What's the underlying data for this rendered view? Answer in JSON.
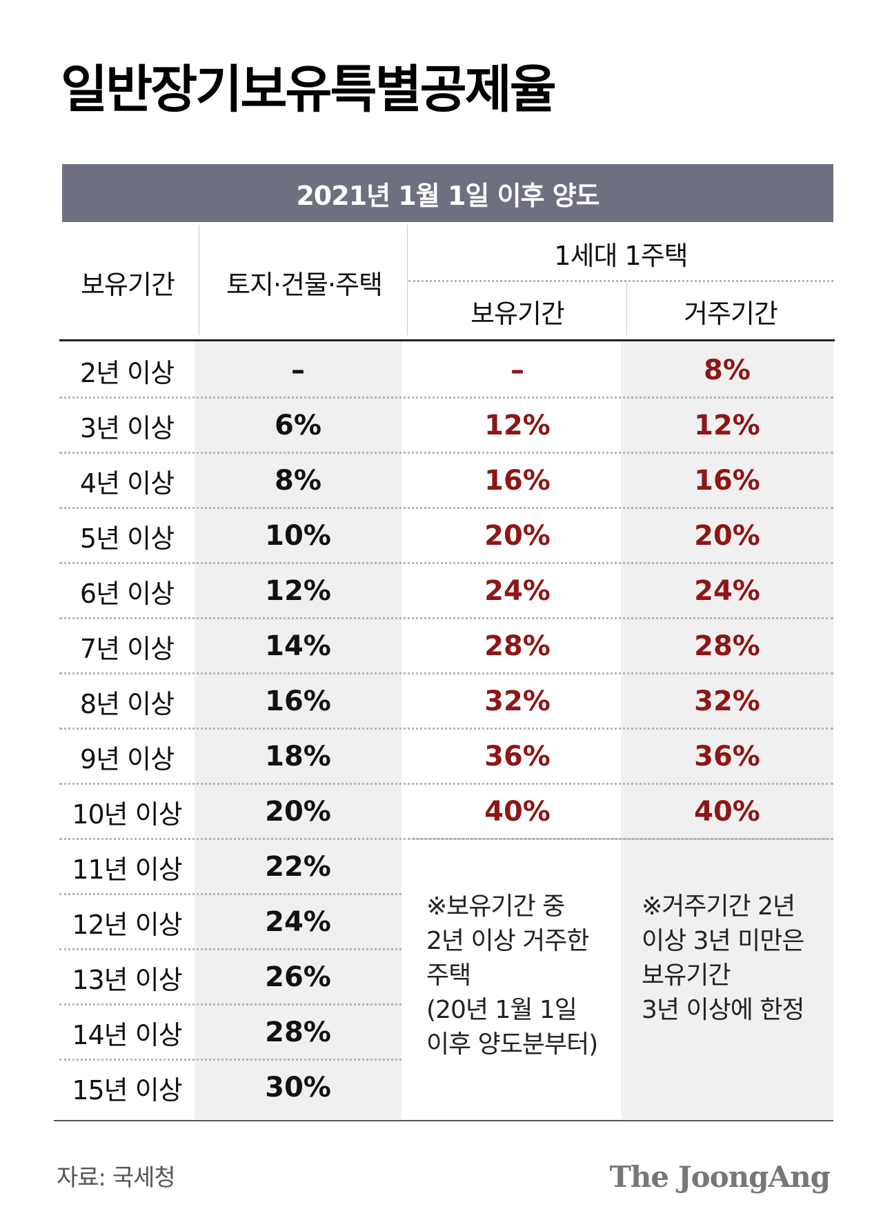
{
  "title": "일반장기보유특별공제율",
  "banner": "2021년 1월 1일 이후 양도",
  "headers": {
    "period": "보유기간",
    "land": "토지·건물·주택",
    "one_house": "1세대 1주택",
    "holding": "보유기간",
    "residence": "거주기간"
  },
  "rows": [
    {
      "period": "2년 이상",
      "land": "–",
      "holding": "–",
      "residence": "8%"
    },
    {
      "period": "3년 이상",
      "land": "6%",
      "holding": "12%",
      "residence": "12%"
    },
    {
      "period": "4년 이상",
      "land": "8%",
      "holding": "16%",
      "residence": "16%"
    },
    {
      "period": "5년 이상",
      "land": "10%",
      "holding": "20%",
      "residence": "20%"
    },
    {
      "period": "6년 이상",
      "land": "12%",
      "holding": "24%",
      "residence": "24%"
    },
    {
      "period": "7년 이상",
      "land": "14%",
      "holding": "28%",
      "residence": "28%"
    },
    {
      "period": "8년 이상",
      "land": "16%",
      "holding": "32%",
      "residence": "32%"
    },
    {
      "period": "9년 이상",
      "land": "18%",
      "holding": "36%",
      "residence": "36%"
    },
    {
      "period": "10년 이상",
      "land": "20%",
      "holding": "40%",
      "residence": "40%"
    },
    {
      "period": "11년 이상",
      "land": "22%"
    },
    {
      "period": "12년 이상",
      "land": "24%"
    },
    {
      "period": "13년 이상",
      "land": "26%"
    },
    {
      "period": "14년 이상",
      "land": "28%"
    },
    {
      "period": "15년 이상",
      "land": "30%"
    }
  ],
  "notes": {
    "holding": [
      "※보유기간 중",
      "2년 이상 거주한",
      "주택",
      "(20년 1월 1일",
      "이후 양도분부터)"
    ],
    "residence": [
      "※거주기간 2년",
      "이상 3년 미만은",
      "보유기간",
      "3년 이상에 한정"
    ]
  },
  "footer": {
    "source": "자료: 국세청",
    "brand": "The JoongAng"
  },
  "colors": {
    "banner": "#6e7080",
    "accent_red": "#8e1616",
    "column_shade": "#f0f0f0"
  }
}
